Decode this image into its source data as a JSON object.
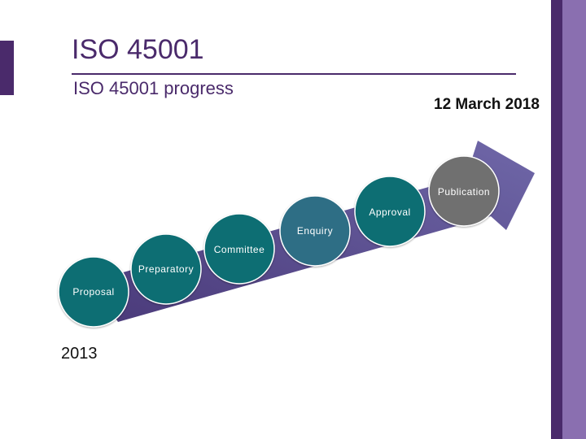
{
  "slide": {
    "title": "ISO 45001",
    "subtitle": "ISO 45001 progress",
    "date": "12 March 2018",
    "start_year": "2013"
  },
  "stages": [
    {
      "label": "Proposal",
      "color": "#0e6e73"
    },
    {
      "label": "Preparatory",
      "color": "#0e6e73"
    },
    {
      "label": "Committee",
      "color": "#0e6e73"
    },
    {
      "label": "Enquiry",
      "color": "#2f6e85"
    },
    {
      "label": "Approval",
      "color": "#0e6e73"
    },
    {
      "label": "Publication",
      "color": "#707070"
    }
  ],
  "colors": {
    "brand_dark": "#4a2a6b",
    "brand_light": "#8a6fb0",
    "arrow": "#6f67a8"
  }
}
